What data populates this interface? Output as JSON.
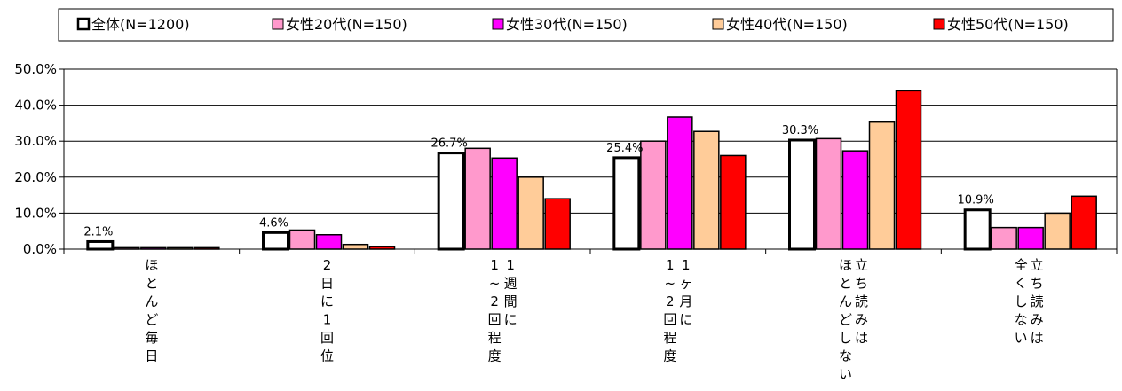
{
  "chart_data": {
    "type": "bar",
    "categories": [
      [
        "ほとんど毎日"
      ],
      [
        "2日に1回位"
      ],
      [
        "1週間に",
        "1〜2回程度"
      ],
      [
        "1ヶ月に",
        "1〜2回程度"
      ],
      [
        "立ち読みは",
        "ほとんどしない"
      ],
      [
        "立ち読みは",
        "全くしない"
      ]
    ],
    "series": [
      {
        "name": "全体(N=1200)",
        "color": "#ffffff",
        "values": [
          2.1,
          4.6,
          26.7,
          25.4,
          30.3,
          10.9
        ]
      },
      {
        "name": "女性20代(N=150)",
        "color": "#ff99cc",
        "values": [
          0.4,
          5.3,
          28.0,
          30.0,
          30.7,
          6.0
        ]
      },
      {
        "name": "女性30代(N=150)",
        "color": "#ff00ff",
        "values": [
          0.4,
          4.0,
          25.3,
          36.7,
          27.3,
          6.0
        ]
      },
      {
        "name": "女性40代(N=150)",
        "color": "#ffcc99",
        "values": [
          0.4,
          1.3,
          20.0,
          32.7,
          35.3,
          10.0
        ]
      },
      {
        "name": "女性50代(N=150)",
        "color": "#ff0000",
        "values": [
          0.4,
          0.7,
          14.0,
          26.0,
          44.0,
          14.7
        ]
      }
    ],
    "data_labels": [
      "2.1%",
      "4.6%",
      "26.7%",
      "25.4%",
      "30.3%",
      "10.9%"
    ],
    "y_ticks": [
      "0.0%",
      "10.0%",
      "20.0%",
      "30.0%",
      "40.0%",
      "50.0%"
    ],
    "ylim": [
      0,
      50
    ],
    "legend_position": "top"
  }
}
